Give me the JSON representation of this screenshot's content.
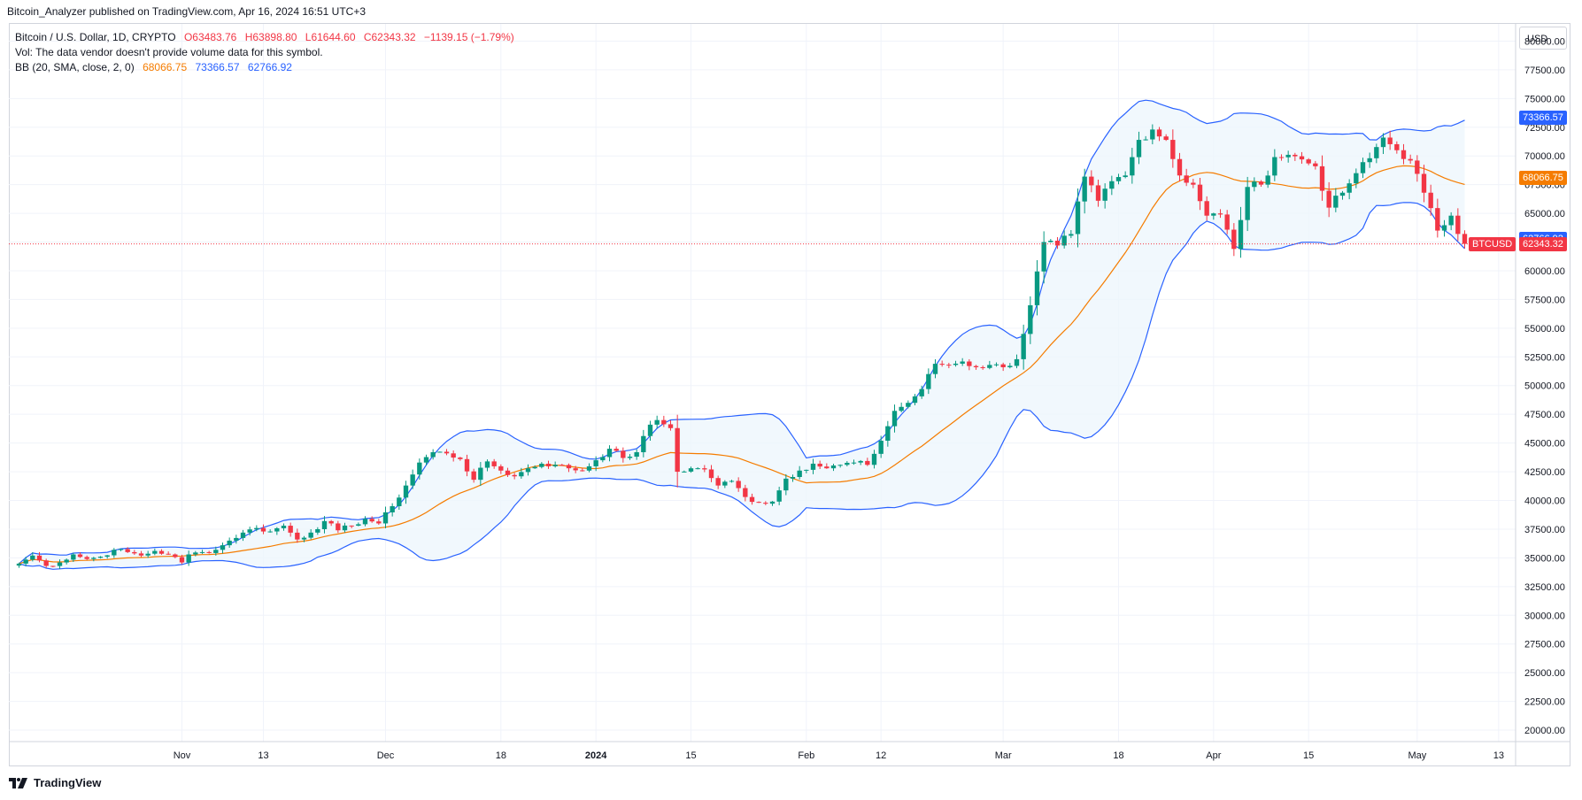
{
  "header": {
    "publisher": "Bitcoin_Analyzer published on TradingView.com, Apr 16, 2024 16:51 UTC+3"
  },
  "legend": {
    "title": "Bitcoin / U.S. Dollar, 1D, CRYPTO",
    "o": "O63483.76",
    "h": "H63898.80",
    "l": "L61644.60",
    "c": "C62343.32",
    "change": "−1139.15 (−1.79%)",
    "vol": "Vol: The data vendor doesn't provide volume data for this symbol.",
    "bb_label": "BB (20, SMA, close, 2, 0)",
    "bb_basis": "68066.75",
    "bb_upper": "73366.57",
    "bb_lower": "62766.92"
  },
  "currency": "USD",
  "footer": {
    "brand": "TradingView"
  },
  "colors": {
    "up": "#089981",
    "down": "#f23645",
    "basis": "#f57c00",
    "band": "#2962ff",
    "fill": "#eef6fc"
  },
  "price_tags": {
    "upper": "73366.57",
    "basis": "68066.75",
    "lower": "62766.92",
    "symbol": "BTCUSD",
    "last": "62343.32"
  },
  "chart_data": {
    "type": "candlestick",
    "title": "Bitcoin / U.S. Dollar, 1D, CRYPTO",
    "ylim": [
      19000,
      81500
    ],
    "x_range_days": [
      -25.5,
      196.5
    ],
    "y_ticks": [
      "20000.00",
      "22500.00",
      "25000.00",
      "27500.00",
      "30000.00",
      "32500.00",
      "35000.00",
      "37500.00",
      "40000.00",
      "42500.00",
      "45000.00",
      "47500.00",
      "50000.00",
      "52500.00",
      "55000.00",
      "57500.00",
      "60000.00",
      "62500.00",
      "65000.00",
      "67500.00",
      "70000.00",
      "72500.00",
      "75000.00",
      "77500.00",
      "80000.00"
    ],
    "x_ticks": [
      {
        "label": "Nov",
        "day": 0
      },
      {
        "label": "13",
        "day": 12
      },
      {
        "label": "Dec",
        "day": 30
      },
      {
        "label": "18",
        "day": 47
      },
      {
        "label": "2024",
        "day": 61
      },
      {
        "label": "15",
        "day": 75
      },
      {
        "label": "Feb",
        "day": 92
      },
      {
        "label": "12",
        "day": 103
      },
      {
        "label": "Mar",
        "day": 121
      },
      {
        "label": "18",
        "day": 138
      },
      {
        "label": "Apr",
        "day": 152
      },
      {
        "label": "15",
        "day": 166
      },
      {
        "label": "May",
        "day": 182
      },
      {
        "label": "13",
        "day": 194
      }
    ],
    "x_tick_bold": [
      "2024"
    ],
    "close_path": [
      [
        -24,
        34500
      ],
      [
        -22,
        35200
      ],
      [
        -20,
        34300
      ],
      [
        -18,
        34600
      ],
      [
        -16,
        35300
      ],
      [
        -14,
        34900
      ],
      [
        -12,
        35100
      ],
      [
        -10,
        35700
      ],
      [
        -8,
        35500
      ],
      [
        -6,
        35200
      ],
      [
        -4,
        35600
      ],
      [
        -2,
        35300
      ],
      [
        0,
        34600
      ],
      [
        1,
        35300
      ],
      [
        3,
        35500
      ],
      [
        5,
        35700
      ],
      [
        7,
        36500
      ],
      [
        9,
        37200
      ],
      [
        11,
        37600
      ],
      [
        13,
        37300
      ],
      [
        15,
        37800
      ],
      [
        17,
        36600
      ],
      [
        19,
        37200
      ],
      [
        21,
        38200
      ],
      [
        23,
        37400
      ],
      [
        25,
        37800
      ],
      [
        27,
        38400
      ],
      [
        29,
        38000
      ],
      [
        31,
        39500
      ],
      [
        33,
        41300
      ],
      [
        35,
        43300
      ],
      [
        37,
        44200
      ],
      [
        39,
        44100
      ],
      [
        41,
        43600
      ],
      [
        43,
        41800
      ],
      [
        45,
        43400
      ],
      [
        47,
        42600
      ],
      [
        49,
        42100
      ],
      [
        51,
        42800
      ],
      [
        53,
        43200
      ],
      [
        55,
        43100
      ],
      [
        57,
        42800
      ],
      [
        59,
        42600
      ],
      [
        61,
        43500
      ],
      [
        63,
        44500
      ],
      [
        65,
        43700
      ],
      [
        67,
        44200
      ],
      [
        69,
        46600
      ],
      [
        70,
        47000
      ],
      [
        72,
        46300
      ],
      [
        73,
        42500
      ],
      [
        75,
        42800
      ],
      [
        77,
        42700
      ],
      [
        79,
        41300
      ],
      [
        81,
        41700
      ],
      [
        83,
        40300
      ],
      [
        85,
        39800
      ],
      [
        87,
        39900
      ],
      [
        89,
        41900
      ],
      [
        91,
        42600
      ],
      [
        93,
        43200
      ],
      [
        95,
        42800
      ],
      [
        97,
        43100
      ],
      [
        99,
        43300
      ],
      [
        101,
        43100
      ],
      [
        103,
        45200
      ],
      [
        105,
        47800
      ],
      [
        107,
        48500
      ],
      [
        109,
        49700
      ],
      [
        111,
        51900
      ],
      [
        113,
        51800
      ],
      [
        115,
        52100
      ],
      [
        117,
        51600
      ],
      [
        119,
        51800
      ],
      [
        121,
        51600
      ],
      [
        123,
        52300
      ],
      [
        125,
        57000
      ],
      [
        127,
        62500
      ],
      [
        129,
        62200
      ],
      [
        131,
        63200
      ],
      [
        133,
        68200
      ],
      [
        135,
        66100
      ],
      [
        137,
        67800
      ],
      [
        139,
        68300
      ],
      [
        141,
        71400
      ],
      [
        143,
        72300
      ],
      [
        145,
        71400
      ],
      [
        147,
        68300
      ],
      [
        149,
        67500
      ],
      [
        151,
        64800
      ],
      [
        153,
        64900
      ],
      [
        155,
        61900
      ],
      [
        157,
        67300
      ],
      [
        159,
        67500
      ],
      [
        161,
        69900
      ],
      [
        163,
        70100
      ],
      [
        165,
        69700
      ],
      [
        167,
        69100
      ],
      [
        169,
        65500
      ],
      [
        171,
        66800
      ],
      [
        173,
        68500
      ],
      [
        175,
        69800
      ],
      [
        177,
        71600
      ],
      [
        179,
        70500
      ],
      [
        181,
        69600
      ],
      [
        183,
        66800
      ],
      [
        185,
        63500
      ],
      [
        187,
        64800
      ],
      [
        189,
        62343
      ]
    ],
    "bollinger": {
      "length": 20,
      "source": "close",
      "mult": 2,
      "basis_last": 68066.75,
      "upper_last": 73366.57,
      "lower_last": 62766.92
    },
    "last_price": 62343.32
  }
}
